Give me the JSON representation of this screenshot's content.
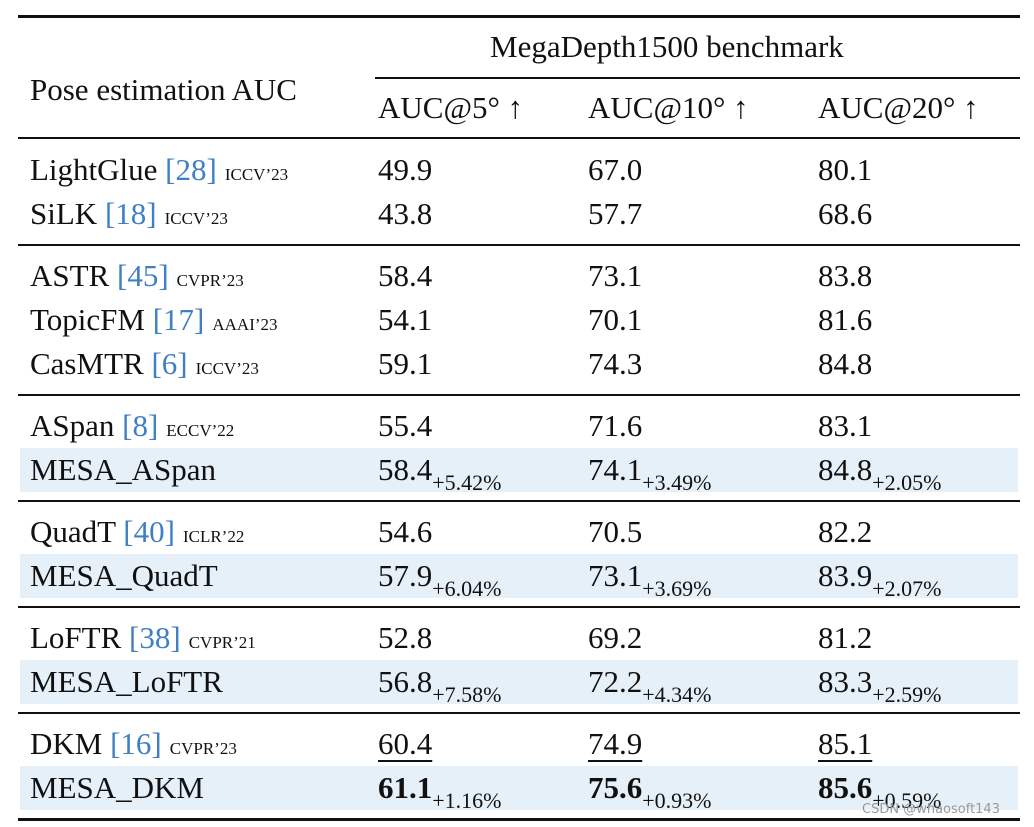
{
  "header": {
    "row_label": "Pose estimation AUC",
    "group_title": "MegaDepth1500 benchmark",
    "columns": [
      "AUC@5° ↑",
      "AUC@10° ↑",
      "AUC@20° ↑"
    ]
  },
  "groups": [
    {
      "rows": [
        {
          "method": "LightGlue",
          "ref": "[28]",
          "venue": "ICCV’23",
          "values": [
            "49.9",
            "67.0",
            "80.1"
          ]
        },
        {
          "method": "SiLK",
          "ref": "[18]",
          "venue": "ICCV’23",
          "values": [
            "43.8",
            "57.7",
            "68.6"
          ]
        }
      ]
    },
    {
      "rows": [
        {
          "method": "ASTR",
          "ref": "[45]",
          "venue": "CVPR’23",
          "values": [
            "58.4",
            "73.1",
            "83.8"
          ]
        },
        {
          "method": "TopicFM",
          "ref": "[17]",
          "venue": "AAAI’23",
          "values": [
            "54.1",
            "70.1",
            "81.6"
          ]
        },
        {
          "method": "CasMTR",
          "ref": "[6]",
          "venue": "ICCV’23",
          "values": [
            "59.1",
            "74.3",
            "84.8"
          ]
        }
      ]
    },
    {
      "rows": [
        {
          "method": "ASpan",
          "ref": "[8]",
          "venue": "ECCV’22",
          "values": [
            "55.4",
            "71.6",
            "83.1"
          ]
        },
        {
          "method": "MESA_ASpan",
          "shaded": true,
          "values": [
            "58.4",
            "74.1",
            "84.8"
          ],
          "deltas": [
            "+5.42%",
            "+3.49%",
            "+2.05%"
          ]
        }
      ]
    },
    {
      "rows": [
        {
          "method": "QuadT",
          "ref": "[40]",
          "venue": "ICLR’22",
          "values": [
            "54.6",
            "70.5",
            "82.2"
          ]
        },
        {
          "method": "MESA_QuadT",
          "shaded": true,
          "values": [
            "57.9",
            "73.1",
            "83.9"
          ],
          "deltas": [
            "+6.04%",
            "+3.69%",
            "+2.07%"
          ]
        }
      ]
    },
    {
      "rows": [
        {
          "method": "LoFTR",
          "ref": "[38]",
          "venue": "CVPR’21",
          "values": [
            "52.8",
            "69.2",
            "81.2"
          ]
        },
        {
          "method": "MESA_LoFTR",
          "shaded": true,
          "values": [
            "56.8",
            "72.2",
            "83.3"
          ],
          "deltas": [
            "+7.58%",
            "+4.34%",
            "+2.59%"
          ]
        }
      ]
    },
    {
      "rows": [
        {
          "method": "DKM",
          "ref": "[16]",
          "venue": "CVPR’23",
          "underline": true,
          "values": [
            "60.4",
            "74.9",
            "85.1"
          ]
        },
        {
          "method": "MESA_DKM",
          "shaded": true,
          "bold": true,
          "values": [
            "61.1",
            "75.6",
            "85.6"
          ],
          "deltas": [
            "+1.16%",
            "+0.93%",
            "+0.59%"
          ]
        }
      ]
    }
  ],
  "watermark": "CSDN @whaosoft143"
}
